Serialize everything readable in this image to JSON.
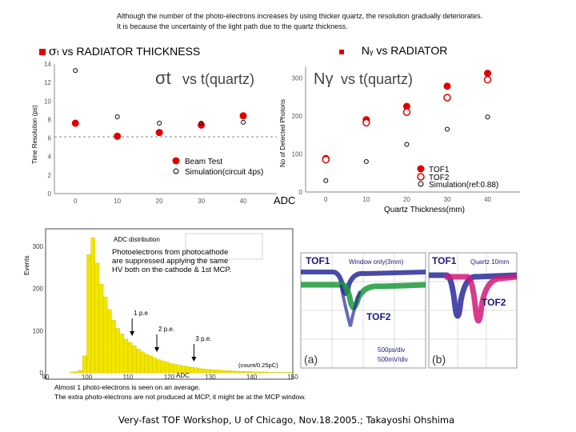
{
  "intro": {
    "line1": "Although the number of the photo-electrons increases by using thicker quartz, the resolution gradually deteriorates.",
    "line2": "It is because the uncertainty of the light path due to the quartz thickness."
  },
  "headings": {
    "left_sigma": "σ",
    "left_sub": "t",
    "left_rest": " vs RADIATOR THICKNESS",
    "right_n": "N",
    "right_sub": "γ",
    "right_rest": " vs RADIATOR"
  },
  "adc_label": "ADC",
  "caption": {
    "line1": "Almost 1 photo-electrons is seen on an average.",
    "line2": "The extra photo-electrons are not produced at MCP, it might be at the MCP window."
  },
  "footer": "Very-fast TOF Workshop,  U of Chicago,    Nov.18.2005.;  Takayoshi Ohshima",
  "colors": {
    "accent": "#e00000",
    "hist": "#f2e600",
    "tof_blue": "#2a2a9a",
    "tof_green": "#1a9a3a",
    "tof_pink": "#d01a7a"
  },
  "chart_data": [
    {
      "type": "scatter",
      "title": "σt vs t(quartz)",
      "title_main": "σt",
      "title_rest": "vs  t(quartz)",
      "ylabel": "Time Resolution (ps)",
      "xlabel": "",
      "xlim": [
        -5,
        48
      ],
      "ylim": [
        0,
        14
      ],
      "yticks": [
        "0",
        "2",
        "4",
        "6",
        "8",
        "10",
        "12",
        "14"
      ],
      "xticks": [
        "0",
        "10",
        "20",
        "30",
        "40"
      ],
      "series": [
        {
          "name": "Beam Test",
          "marker": "filled",
          "points": [
            [
              0,
              7.6
            ],
            [
              10,
              6.2
            ],
            [
              20,
              6.6
            ],
            [
              30,
              7.4
            ],
            [
              40,
              8.4
            ]
          ]
        },
        {
          "name": "Simulation(circuit 4ps)",
          "marker": "open",
          "points": [
            [
              0,
              13.3
            ],
            [
              10,
              8.3
            ],
            [
              20,
              7.6
            ],
            [
              30,
              7.6
            ],
            [
              40,
              7.7
            ]
          ]
        }
      ],
      "legend": [
        "Beam Test",
        "Simulation(circuit 4ps)"
      ]
    },
    {
      "type": "scatter",
      "title": "Nγ vs t(quartz)",
      "title_main": "Nγ",
      "title_rest": "vs  t(quartz)",
      "ylabel": "No of Detected Photons",
      "xlabel": "Quartz Thickness(mm)",
      "xlim": [
        -5,
        48
      ],
      "ylim": [
        0,
        330
      ],
      "yticks": [
        "0",
        "100",
        "200",
        "300"
      ],
      "xticks": [
        "0",
        "10",
        "20",
        "30",
        "40"
      ],
      "series": [
        {
          "name": "TOF1",
          "marker": "filled",
          "points": [
            [
              0,
              88
            ],
            [
              10,
              190
            ],
            [
              20,
              225
            ],
            [
              30,
              278
            ],
            [
              40,
              312
            ]
          ]
        },
        {
          "name": "TOF2",
          "marker": "open-thick",
          "points": [
            [
              0,
              85
            ],
            [
              10,
              182
            ],
            [
              20,
              210
            ],
            [
              30,
              248
            ],
            [
              40,
              295
            ]
          ]
        },
        {
          "name": "Simulation(ref:0.88)",
          "marker": "open",
          "points": [
            [
              0,
              30
            ],
            [
              10,
              80
            ],
            [
              20,
              125
            ],
            [
              30,
              165
            ],
            [
              40,
              197
            ]
          ]
        }
      ],
      "legend": [
        "TOF1",
        "TOF2",
        "Simulation(ref:0.88)"
      ]
    },
    {
      "type": "bar",
      "title": "ADC distribution",
      "ylabel": "Events",
      "xlabel": "ADC",
      "xlim": [
        90,
        150
      ],
      "ylim": [
        0,
        330
      ],
      "yticks": [
        "0",
        "100",
        "200",
        "300"
      ],
      "xticks": [
        "90",
        "100",
        "110",
        "120",
        "130",
        "140",
        "150"
      ],
      "annotation": "Photoelectrons from photocathode are suppressed applying the same HV both on the cathode & 1st MCP.",
      "annotation_lines": [
        "Photoelectrons from photocathode",
        "are suppressed applying the same",
        "HV both on the cathode & 1st MCP."
      ],
      "bin_note": "(count/0.25pC)",
      "markers": [
        {
          "label": "1 p.e",
          "x": 111
        },
        {
          "label": "2 p.e.",
          "x": 117
        },
        {
          "label": "3 p.e.",
          "x": 126
        }
      ],
      "x": [
        96,
        97,
        98,
        99,
        100,
        101,
        102,
        103,
        104,
        105,
        106,
        107,
        108,
        109,
        110,
        111,
        112,
        113,
        114,
        115,
        116,
        117,
        118,
        119,
        120,
        121,
        122,
        123,
        124,
        125,
        126,
        127,
        128,
        129,
        130,
        131,
        132,
        133,
        134,
        135,
        136,
        137,
        138,
        139,
        140,
        141,
        142,
        143,
        144,
        145,
        146,
        147,
        148,
        149
      ],
      "values": [
        2,
        3,
        6,
        40,
        280,
        320,
        260,
        210,
        180,
        150,
        125,
        105,
        92,
        80,
        72,
        64,
        56,
        50,
        44,
        40,
        35,
        31,
        28,
        25,
        22,
        20,
        18,
        16,
        15,
        13,
        12,
        10,
        9,
        8,
        7,
        7,
        6,
        5,
        5,
        4,
        4,
        3,
        3,
        3,
        2,
        2,
        2,
        2,
        1,
        1,
        1,
        1,
        1,
        1
      ]
    }
  ],
  "scopes": {
    "a": {
      "tof1": "TOF1",
      "window": "Window only(3mm)",
      "tof2": "TOF2",
      "time": "500ps/div",
      "volt": "500mV/div",
      "tag": "(a)"
    },
    "b": {
      "tof1": "TOF1",
      "window": "Quartz 10mm",
      "tof2": "TOF2",
      "tag": "(b)"
    }
  }
}
